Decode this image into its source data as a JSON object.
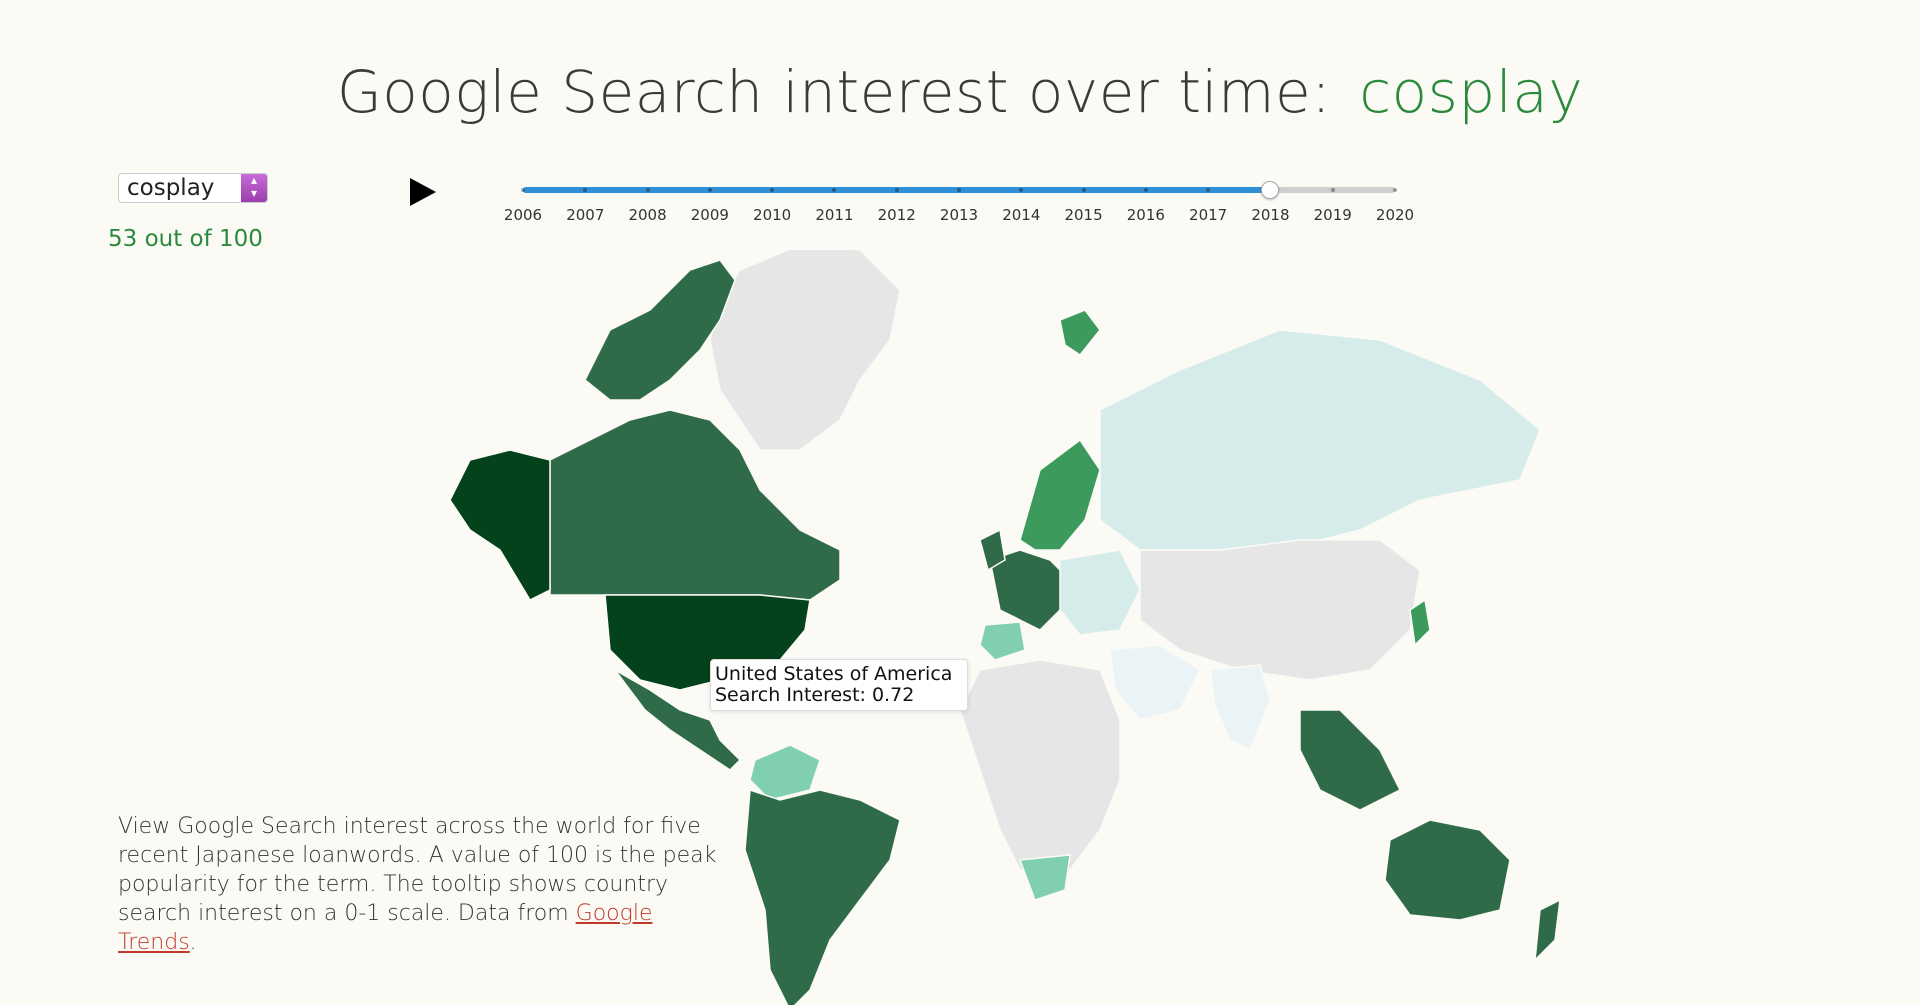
{
  "header": {
    "title_prefix": "Google Search interest over time:",
    "keyword": "cosplay"
  },
  "controls": {
    "term_select": {
      "value": "cosplay"
    },
    "score_text": "53 out of 100",
    "play_icon": "play-icon"
  },
  "timeline": {
    "years": [
      "2006",
      "2007",
      "2008",
      "2009",
      "2010",
      "2011",
      "2012",
      "2013",
      "2014",
      "2015",
      "2016",
      "2017",
      "2018",
      "2019",
      "2020"
    ],
    "selected_year": "2018",
    "selected_index": 12,
    "fill_color": "#2f8fd6",
    "track_color": "#cfcfcf"
  },
  "tooltip": {
    "country": "United States of America",
    "interest_text": "Search Interest: 0.72"
  },
  "description": {
    "text": "View Google Search interest across the world for five recent Japanese loanwords. A value of 100 is the peak popularity for the term. The tooltip shows country search interest on a 0-1 scale. Data from ",
    "link_text": "Google Trends",
    "suffix": "."
  },
  "map_colors": {
    "no_data": "#e6e6e6",
    "lowest": "#d5ecea",
    "low": "#7fcfb0",
    "mid": "#3c9a5c",
    "high": "#2f6b48",
    "highest": "#03421b",
    "pale": "#eaf4f7"
  },
  "chart_data": {
    "type": "choropleth",
    "term": "cosplay",
    "year": "2018",
    "scale": "0-1",
    "regions": [
      {
        "name": "United States of America",
        "value": 0.72,
        "level": "highest"
      },
      {
        "name": "Alaska",
        "level": "highest"
      },
      {
        "name": "Canada",
        "level": "high"
      },
      {
        "name": "Greenland",
        "level": "no_data"
      },
      {
        "name": "Mexico",
        "level": "high"
      },
      {
        "name": "Venezuela / Colombia",
        "level": "low"
      },
      {
        "name": "South America",
        "level": "high"
      },
      {
        "name": "Western Europe",
        "level": "high"
      },
      {
        "name": "Scandinavia",
        "level": "mid"
      },
      {
        "name": "Iberia",
        "level": "low"
      },
      {
        "name": "Eastern Europe",
        "level": "lowest"
      },
      {
        "name": "Russia",
        "level": "lowest"
      },
      {
        "name": "Africa",
        "level": "no_data"
      },
      {
        "name": "South Africa",
        "level": "low"
      },
      {
        "name": "Middle East",
        "level": "pale"
      },
      {
        "name": "India",
        "level": "pale"
      },
      {
        "name": "China / Central Asia",
        "level": "no_data"
      },
      {
        "name": "Southeast Asia",
        "level": "high"
      },
      {
        "name": "Japan",
        "level": "mid"
      },
      {
        "name": "Australia",
        "level": "high"
      },
      {
        "name": "New Zealand",
        "level": "high"
      }
    ]
  }
}
